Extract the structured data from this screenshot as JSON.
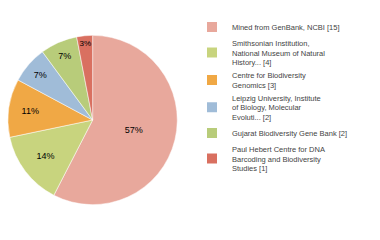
{
  "chart_data": {
    "type": "pie",
    "categories": [
      "Mined from GenBank, NCBI [15]",
      "Smithsonian Institution,\nNational Museum of Natural\nHistory... [4]",
      "Centre for Biodiversity\nGenomics [3]",
      "Leipzig University, Institute\nof Biology, Molecular\nEvoluti... [2]",
      "Gujarat Biodiversity Gene Bank [2]",
      "Paul Hebert Centre for DNA\nBarcoding and Biodiversity\nStudies [1]"
    ],
    "values": [
      57,
      14,
      11,
      7,
      7,
      3
    ],
    "value_labels": [
      "57%",
      "14%",
      "11%",
      "7%",
      "7%",
      "3%"
    ],
    "colors": [
      "#e8a89c",
      "#c8d47e",
      "#f0a845",
      "#a0bcd8",
      "#b8cc7a",
      "#d97060"
    ],
    "data_labels": true,
    "legend": "right"
  }
}
